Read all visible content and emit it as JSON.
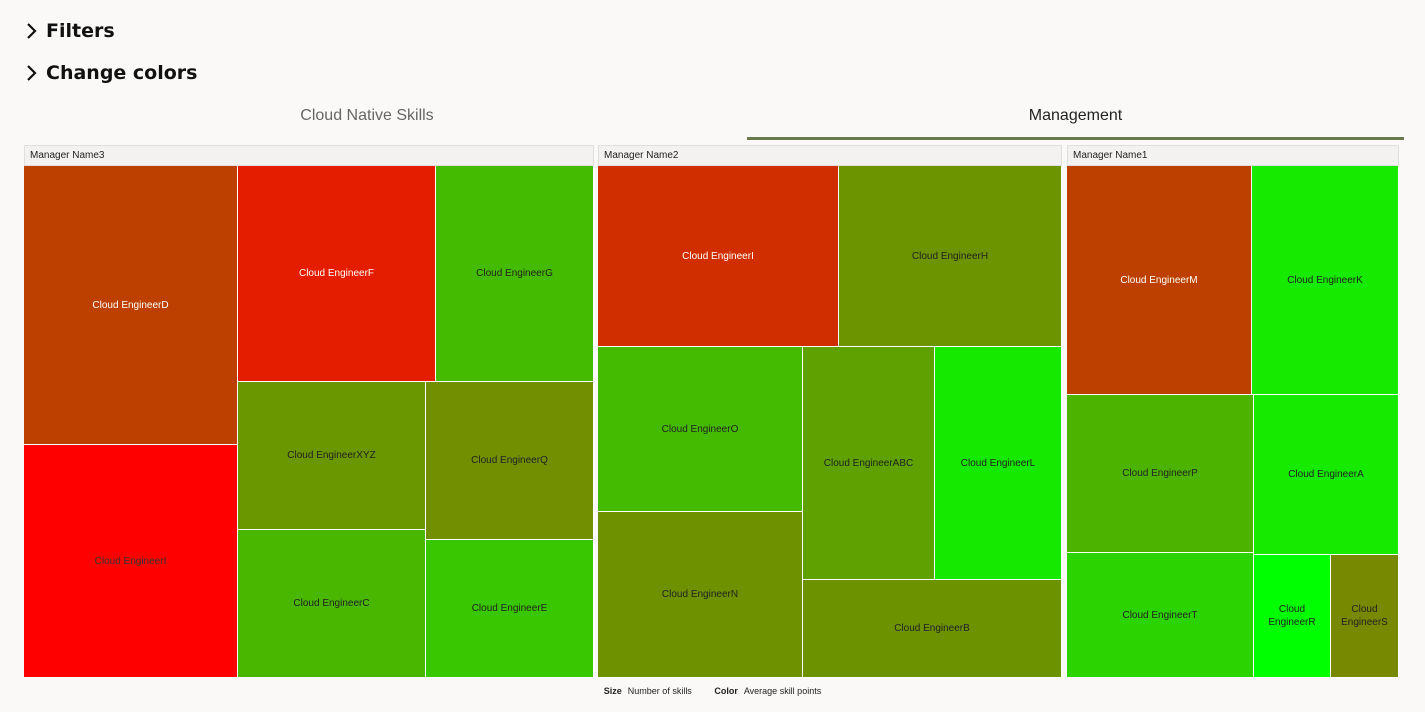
{
  "filters_label": "Filters",
  "change_colors_label": "Change colors",
  "tabs": [
    {
      "label": "Cloud Native Skills",
      "active": false
    },
    {
      "label": "Management",
      "active": true
    }
  ],
  "legend": {
    "size_key": "Size",
    "size_value": "Number of skills",
    "color_key": "Color",
    "color_value": "Average skill points"
  },
  "chart_data": {
    "type": "treemap",
    "size_measure": "Number of skills",
    "color_measure": "Average skill points",
    "groups": [
      {
        "name": "Manager Name3",
        "tiles": [
          {
            "label": "Cloud EngineerD",
            "color": "#bd4000",
            "text_color": "#ffffff"
          },
          {
            "label": "Cloud EngineerI",
            "color": "#ff0000",
            "text_color": "#333333"
          },
          {
            "label": "Cloud EngineerF",
            "color": "#e41c00",
            "text_color": "#ffffff"
          },
          {
            "label": "Cloud EngineerG",
            "color": "#44bb00",
            "text_color": "#222222"
          },
          {
            "label": "Cloud EngineerXYZ",
            "color": "#6a9600",
            "text_color": "#222222"
          },
          {
            "label": "Cloud EngineerQ",
            "color": "#718f00",
            "text_color": "#222222"
          },
          {
            "label": "Cloud EngineerC",
            "color": "#49b600",
            "text_color": "#222222"
          },
          {
            "label": "Cloud EngineerE",
            "color": "#38c700",
            "text_color": "#222222"
          }
        ]
      },
      {
        "name": "Manager Name2",
        "tiles": [
          {
            "label": "Cloud EngineerI",
            "color": "#d12e00",
            "text_color": "#ffffff"
          },
          {
            "label": "Cloud EngineerH",
            "color": "#6b9400",
            "text_color": "#222222"
          },
          {
            "label": "Cloud EngineerO",
            "color": "#44bb00",
            "text_color": "#222222"
          },
          {
            "label": "Cloud EngineerABC",
            "color": "#5ea100",
            "text_color": "#222222"
          },
          {
            "label": "Cloud EngineerL",
            "color": "#16e900",
            "text_color": "#222222"
          },
          {
            "label": "Cloud EngineerN",
            "color": "#6e9100",
            "text_color": "#222222"
          },
          {
            "label": "Cloud EngineerB",
            "color": "#6d9200",
            "text_color": "#222222"
          }
        ]
      },
      {
        "name": "Manager Name1",
        "tiles": [
          {
            "label": "Cloud EngineerM",
            "color": "#bd4000",
            "text_color": "#ffffff"
          },
          {
            "label": "Cloud EngineerK",
            "color": "#15ea00",
            "text_color": "#222222"
          },
          {
            "label": "Cloud EngineerP",
            "color": "#4cb300",
            "text_color": "#222222"
          },
          {
            "label": "Cloud EngineerA",
            "color": "#15ea00",
            "text_color": "#222222"
          },
          {
            "label": "Cloud EngineerT",
            "color": "#2bd400",
            "text_color": "#222222"
          },
          {
            "label": "Cloud EngineerR",
            "color": "#00ff00",
            "text_color": "#222222"
          },
          {
            "label": "Cloud EngineerS",
            "color": "#768900",
            "text_color": "#222222"
          }
        ]
      }
    ]
  }
}
